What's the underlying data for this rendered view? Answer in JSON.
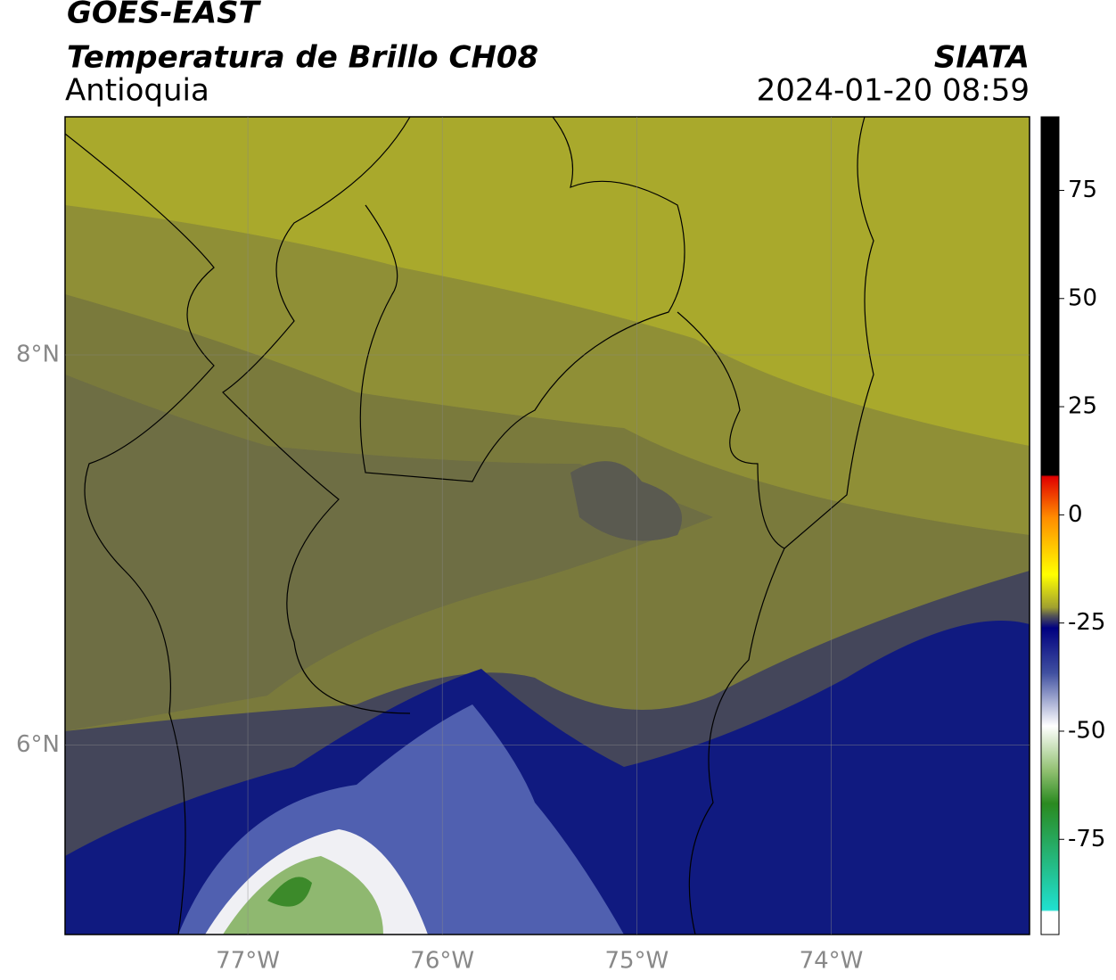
{
  "header": {
    "title": "GOES-EAST",
    "subtitle": "Temperatura de Brillo CH08",
    "region": "Antioquia",
    "source": "SIATA",
    "datetime": "2024-01-20 08:59"
  },
  "map": {
    "xlim": [
      -77.94,
      -72.98
    ],
    "ylim": [
      5.03,
      9.22
    ],
    "xticks": [
      {
        "value": -77,
        "label": "77°W"
      },
      {
        "value": -76,
        "label": "76°W"
      },
      {
        "value": -75,
        "label": "75°W"
      },
      {
        "value": -74,
        "label": "74°W"
      }
    ],
    "yticks": [
      {
        "value": 6,
        "label": "6°N"
      },
      {
        "value": 8,
        "label": "8°N"
      }
    ],
    "grid": true
  },
  "colorbar": {
    "lim": [
      -97,
      92
    ],
    "ticks": [
      75,
      50,
      25,
      0,
      -25,
      -50,
      -75
    ]
  }
}
